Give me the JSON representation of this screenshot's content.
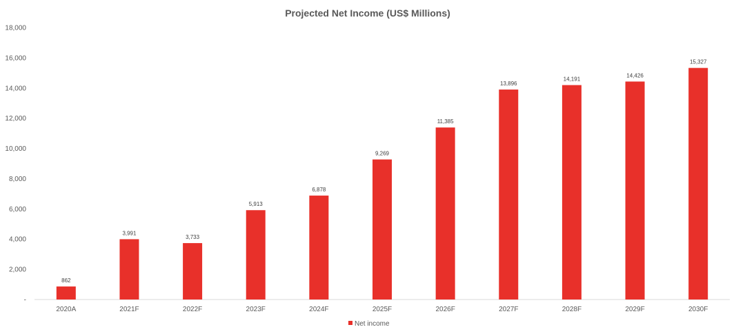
{
  "chart_data": {
    "type": "bar",
    "title": "Projected Net Income (US$ Millions)",
    "xlabel": "",
    "ylabel": "",
    "categories": [
      "2020A",
      "2021F",
      "2022F",
      "2023F",
      "2024F",
      "2025F",
      "2026F",
      "2027F",
      "2028F",
      "2029F",
      "2030F"
    ],
    "series": [
      {
        "name": "Net income",
        "values": [
          862,
          3991,
          3733,
          5913,
          6878,
          9269,
          11385,
          13896,
          14191,
          14426,
          15327
        ],
        "labels": [
          "862",
          "3,991",
          "3,733",
          "5,913",
          "6,878",
          "9,269",
          "11,385",
          "13,896",
          "14,191",
          "14,426",
          "15,327"
        ],
        "color": "#e8302a"
      }
    ],
    "ylim": [
      0,
      18000
    ],
    "yticks": [
      0,
      2000,
      4000,
      6000,
      8000,
      10000,
      12000,
      14000,
      16000,
      18000
    ],
    "ytick_labels": [
      "-",
      "2,000",
      "4,000",
      "6,000",
      "8,000",
      "10,000",
      "12,000",
      "14,000",
      "16,000",
      "18,000"
    ],
    "grid": false,
    "legend": "bottom-center"
  }
}
